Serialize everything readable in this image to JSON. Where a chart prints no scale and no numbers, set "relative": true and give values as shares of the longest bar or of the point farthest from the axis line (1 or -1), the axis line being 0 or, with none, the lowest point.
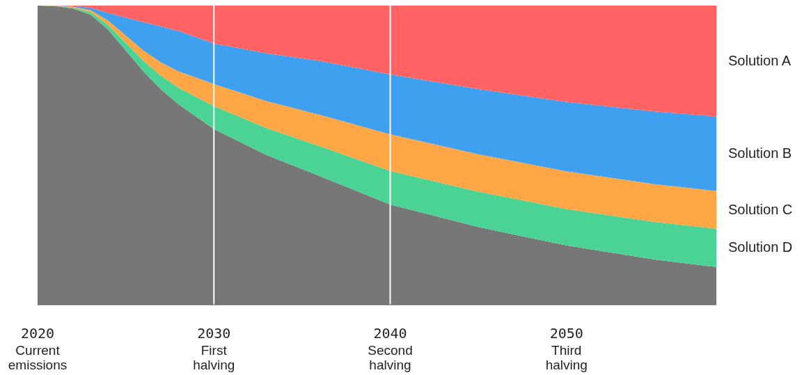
{
  "chart_data": {
    "type": "area",
    "relative": true,
    "stacked": true,
    "grid": false,
    "legend": false,
    "x": [
      2020,
      2021,
      2022,
      2023,
      2024,
      2025,
      2026,
      2027,
      2028,
      2030,
      2033,
      2036,
      2040,
      2045,
      2050,
      2055,
      2058.5
    ],
    "xlim": [
      2020,
      2058.5
    ],
    "xticks": [
      2020,
      2030,
      2040,
      2050
    ],
    "annotations": [
      "Current emissions",
      "First halving",
      "Second halving",
      "Third halving"
    ],
    "series": [
      {
        "color": "#777777",
        "values": [
          1,
          0.998,
          0.99,
          0.97,
          0.92,
          0.85,
          0.78,
          0.72,
          0.67,
          0.587,
          0.5,
          0.43,
          0.335,
          0.26,
          0.198,
          0.151,
          0.126
        ]
      },
      {
        "name": "Solution D",
        "color": "#4ad395",
        "values": [
          0,
          0.001,
          0.003,
          0.008,
          0.015,
          0.025,
          0.035,
          0.045,
          0.055,
          0.077,
          0.09,
          0.1,
          0.112,
          0.118,
          0.122,
          0.126,
          0.128
        ]
      },
      {
        "name": "Solution C",
        "color": "#ffa646",
        "values": [
          0,
          0.001,
          0.003,
          0.007,
          0.015,
          0.025,
          0.035,
          0.045,
          0.055,
          0.074,
          0.09,
          0.105,
          0.123,
          0.125,
          0.126,
          0.126,
          0.126
        ]
      },
      {
        "name": "Solution B",
        "color": "#40a0f0",
        "values": [
          0,
          0,
          0.002,
          0.008,
          0.025,
          0.06,
          0.095,
          0.12,
          0.135,
          0.135,
          0.16,
          0.18,
          0.2,
          0.218,
          0.232,
          0.243,
          0.249
        ]
      },
      {
        "name": "Solution A",
        "color": "#ff6363",
        "values": [
          0,
          0,
          0.002,
          0.007,
          0.025,
          0.04,
          0.055,
          0.07,
          0.085,
          0.127,
          0.16,
          0.185,
          0.23,
          0.279,
          0.322,
          0.354,
          0.371
        ]
      }
    ],
    "ref_lines": [
      {
        "axis": "x",
        "value": 2030,
        "color": "#ffffff"
      },
      {
        "axis": "x",
        "value": 2040,
        "color": "#ffffff"
      }
    ]
  }
}
